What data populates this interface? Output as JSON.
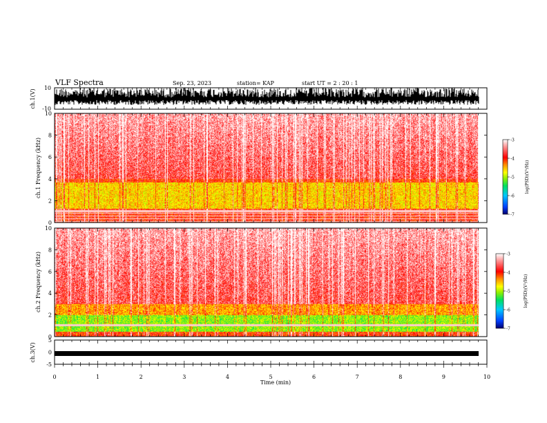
{
  "header": {
    "title": "VLF Spectra",
    "date": "Sep. 23, 2023",
    "station": "station= KAP",
    "start": "start  UT =   2  : 20 : 1"
  },
  "chart_data": [
    {
      "type": "line",
      "panel": "ch1-waveform",
      "ylabel": "ch.1(V)",
      "ylim": [
        -10,
        10
      ],
      "y_ticks": [
        "10",
        "-10"
      ],
      "x_range": [
        0,
        10
      ],
      "trace_color": "#000000",
      "note": "dense black waveform trace spanning roughly -6 V to +10 V"
    },
    {
      "type": "heatmap",
      "panel": "ch1-spectrogram",
      "ylabel": "ch.1  Frequency  (kHz)",
      "ylim": [
        0,
        10
      ],
      "y_ticks": [
        "0",
        "2",
        "4",
        "6",
        "8",
        "10"
      ],
      "x_range": [
        0,
        9.8
      ],
      "colorbar": {
        "label": "log(PSD)(V²/Hz)",
        "range": [
          -7,
          -3
        ],
        "ticks": [
          "-3",
          "-4",
          "-5",
          "-6",
          "-7"
        ],
        "colors": [
          "#00006e",
          "#0040ff",
          "#00c8ff",
          "#00e060",
          "#90f000",
          "#ffff00",
          "#ff9000",
          "#ff0000",
          "#ff9090",
          "#ffffff"
        ]
      },
      "features": [
        {
          "band_khz": [
            4,
            10
          ],
          "level": "red / white speckle"
        },
        {
          "band_khz": [
            1.3,
            3.7
          ],
          "level": "yellow-green band"
        },
        {
          "band_khz": [
            0,
            1.3
          ],
          "level": "red with white horizontal lines"
        }
      ]
    },
    {
      "type": "heatmap",
      "panel": "ch2-spectrogram",
      "ylabel": "ch.2  Frequency  (kHz)",
      "ylim": [
        0,
        10
      ],
      "y_ticks": [
        "0",
        "2",
        "4",
        "6",
        "8",
        "10"
      ],
      "x_range": [
        0,
        9.8
      ],
      "colorbar": {
        "label": "log(PSD)(V²/Hz)",
        "range": [
          -7,
          -3
        ],
        "ticks": [
          "-3",
          "-4",
          "-5",
          "-6",
          "-7"
        ]
      },
      "features": [
        {
          "band_khz": [
            3,
            10
          ],
          "level": "red / white speckle"
        },
        {
          "band_khz": [
            2,
            3
          ],
          "level": "yellow-green patches"
        },
        {
          "band_khz": [
            0.5,
            2
          ],
          "level": "green / cyan band"
        }
      ]
    },
    {
      "type": "line",
      "panel": "ch3-waveform",
      "ylabel": "ch.3(V)",
      "ylim": [
        -5,
        5
      ],
      "y_ticks": [
        "5",
        "0",
        "-5"
      ],
      "x_range": [
        0,
        10
      ],
      "trace_color": "#000000",
      "note": "narrow black band near -1 V"
    }
  ],
  "x_axis": {
    "label": "Time  (min)",
    "ticks": [
      "0",
      "1",
      "2",
      "3",
      "4",
      "5",
      "6",
      "7",
      "8",
      "9",
      "10"
    ]
  }
}
